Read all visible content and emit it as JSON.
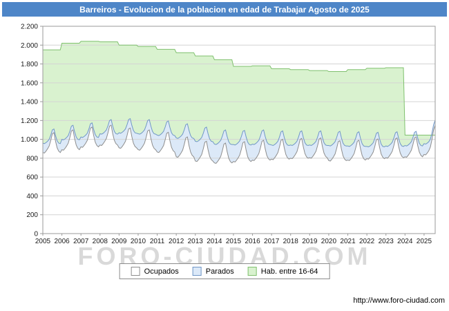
{
  "title": "Barreiros - Evolucion de la poblacion en edad de Trabajar Agosto de 2025",
  "watermark": "FORO-CIUDAD.COM",
  "footer_url": "http://www.foro-ciudad.com",
  "colors": {
    "title_bg": "#4e86c8",
    "title_fg": "#ffffff",
    "grid": "#d4d4d4",
    "plot_border": "#9a9a9a",
    "axis_text": "#1a1a1a",
    "watermark": "#d9d9d9",
    "hab_fill": "#d9f2cf",
    "hab_stroke": "#7fc06e",
    "parados_fill": "#dce9f8",
    "parados_stroke": "#6f96c6",
    "ocupados_fill": "#ffffff",
    "ocupados_stroke": "#8d8d8d"
  },
  "legend": [
    {
      "label": "Ocupados",
      "fill": "#ffffff",
      "stroke": "#8d8d8d"
    },
    {
      "label": "Parados",
      "fill": "#dce9f8",
      "stroke": "#6f96c6"
    },
    {
      "label": "Hab. entre 16-64",
      "fill": "#d9f2cf",
      "stroke": "#7fc06e"
    }
  ],
  "chart_data": {
    "type": "area",
    "title": "Barreiros - Evolucion de la poblacion en edad de Trabajar Agosto de 2025",
    "xlabel": "",
    "ylabel": "",
    "ylim": [
      0,
      2200
    ],
    "grid": "horizontal",
    "legend_position": "bottom",
    "stacking": "Parados is stacked on top of Ocupados; Hab. entre 16-64 is the background total area",
    "y_tick_labels": [
      "0",
      "200",
      "400",
      "600",
      "800",
      "1.000",
      "1.200",
      "1.400",
      "1.600",
      "1.800",
      "2.000",
      "2.200"
    ],
    "x_tick_labels": [
      "2005",
      "2006",
      "2007",
      "2008",
      "2009",
      "2010",
      "2011",
      "2012",
      "2013",
      "2014",
      "2015",
      "2016",
      "2017",
      "2018",
      "2019",
      "2020",
      "2021",
      "2022",
      "2023",
      "2024",
      "2025"
    ],
    "frequency": "monthly",
    "last_month": "Agosto 2025",
    "years": [
      {
        "year": 2005,
        "hab": 1950,
        "ocupados": [
          860,
          855,
          875,
          900,
          930,
          990,
          1060,
          1070,
          980,
          910,
          875,
          860
        ],
        "parados": [
          100,
          100,
          90,
          80,
          70,
          55,
          40,
          40,
          60,
          75,
          85,
          95
        ]
      },
      {
        "year": 2006,
        "hab": 2020,
        "ocupados": [
          890,
          885,
          905,
          930,
          960,
          1020,
          1090,
          1100,
          1010,
          940,
          905,
          890
        ],
        "parados": [
          110,
          110,
          100,
          90,
          80,
          65,
          50,
          50,
          70,
          85,
          95,
          105
        ]
      },
      {
        "year": 2007,
        "hab": 2040,
        "ocupados": [
          920,
          915,
          935,
          960,
          990,
          1050,
          1120,
          1130,
          1040,
          970,
          935,
          920
        ],
        "parados": [
          105,
          105,
          95,
          85,
          75,
          60,
          45,
          45,
          65,
          80,
          90,
          100
        ]
      },
      {
        "year": 2008,
        "hab": 2035,
        "ocupados": [
          940,
          935,
          955,
          980,
          1010,
          1070,
          1140,
          1150,
          1060,
          990,
          955,
          940
        ],
        "parados": [
          120,
          120,
          110,
          100,
          90,
          75,
          60,
          60,
          80,
          95,
          105,
          115
        ]
      },
      {
        "year": 2009,
        "hab": 2000,
        "ocupados": [
          910,
          905,
          925,
          950,
          980,
          1040,
          1110,
          1120,
          1030,
          960,
          925,
          910
        ],
        "parados": [
          160,
          160,
          150,
          140,
          130,
          115,
          100,
          100,
          120,
          135,
          145,
          155
        ]
      },
      {
        "year": 2010,
        "hab": 1985,
        "ocupados": [
          890,
          885,
          905,
          930,
          960,
          1020,
          1090,
          1100,
          1010,
          940,
          905,
          890
        ],
        "parados": [
          170,
          170,
          160,
          150,
          140,
          125,
          110,
          110,
          130,
          145,
          155,
          165
        ]
      },
      {
        "year": 2011,
        "hab": 1955,
        "ocupados": [
          865,
          860,
          880,
          905,
          935,
          995,
          1065,
          1075,
          985,
          915,
          880,
          865
        ],
        "parados": [
          180,
          180,
          170,
          160,
          150,
          135,
          120,
          120,
          140,
          155,
          165,
          175
        ]
      },
      {
        "year": 2012,
        "hab": 1920,
        "ocupados": [
          815,
          810,
          830,
          855,
          885,
          945,
          1015,
          1025,
          935,
          865,
          830,
          815
        ],
        "parados": [
          200,
          200,
          190,
          180,
          170,
          155,
          140,
          140,
          160,
          175,
          185,
          195
        ]
      },
      {
        "year": 2013,
        "hab": 1885,
        "ocupados": [
          770,
          765,
          785,
          810,
          840,
          900,
          970,
          980,
          890,
          820,
          785,
          770
        ],
        "parados": [
          210,
          210,
          200,
          190,
          180,
          165,
          150,
          150,
          170,
          185,
          195,
          205
        ]
      },
      {
        "year": 2014,
        "hab": 1845,
        "ocupados": [
          750,
          745,
          765,
          790,
          820,
          880,
          950,
          960,
          870,
          800,
          765,
          750
        ],
        "parados": [
          200,
          200,
          190,
          180,
          170,
          155,
          140,
          140,
          160,
          175,
          185,
          195
        ]
      },
      {
        "year": 2015,
        "hab": 1775,
        "ocupados": [
          765,
          760,
          780,
          805,
          835,
          895,
          965,
          975,
          885,
          815,
          780,
          765
        ],
        "parados": [
          180,
          180,
          170,
          160,
          150,
          135,
          120,
          120,
          140,
          155,
          165,
          175
        ]
      },
      {
        "year": 2016,
        "hab": 1780,
        "ocupados": [
          780,
          775,
          795,
          820,
          850,
          910,
          980,
          990,
          900,
          830,
          795,
          780
        ],
        "parados": [
          170,
          170,
          160,
          150,
          140,
          125,
          110,
          110,
          130,
          145,
          155,
          165
        ]
      },
      {
        "year": 2017,
        "hab": 1750,
        "ocupados": [
          790,
          785,
          805,
          830,
          860,
          920,
          990,
          1000,
          910,
          840,
          805,
          790
        ],
        "parados": [
          150,
          150,
          140,
          130,
          120,
          105,
          90,
          90,
          110,
          125,
          135,
          145
        ]
      },
      {
        "year": 2018,
        "hab": 1740,
        "ocupados": [
          800,
          795,
          815,
          840,
          870,
          930,
          1000,
          1010,
          920,
          850,
          815,
          800
        ],
        "parados": [
          140,
          140,
          130,
          120,
          110,
          95,
          80,
          80,
          100,
          115,
          125,
          135
        ]
      },
      {
        "year": 2019,
        "hab": 1730,
        "ocupados": [
          805,
          800,
          820,
          845,
          875,
          935,
          1005,
          1015,
          925,
          855,
          820,
          805
        ],
        "parados": [
          135,
          135,
          125,
          115,
          105,
          90,
          75,
          75,
          95,
          110,
          120,
          130
        ]
      },
      {
        "year": 2020,
        "hab": 1720,
        "ocupados": [
          775,
          770,
          790,
          815,
          845,
          905,
          975,
          985,
          895,
          825,
          790,
          775
        ],
        "parados": [
          160,
          160,
          150,
          140,
          130,
          115,
          100,
          100,
          120,
          135,
          145,
          155
        ]
      },
      {
        "year": 2021,
        "hab": 1740,
        "ocupados": [
          780,
          775,
          795,
          820,
          850,
          910,
          980,
          990,
          900,
          830,
          795,
          780
        ],
        "parados": [
          150,
          150,
          140,
          130,
          120,
          105,
          90,
          90,
          110,
          125,
          135,
          145
        ]
      },
      {
        "year": 2022,
        "hab": 1755,
        "ocupados": [
          795,
          790,
          810,
          835,
          865,
          925,
          995,
          1005,
          915,
          845,
          810,
          795
        ],
        "parados": [
          130,
          130,
          120,
          110,
          100,
          85,
          70,
          70,
          90,
          105,
          115,
          125
        ]
      },
      {
        "year": 2023,
        "hab": 1760,
        "ocupados": [
          805,
          800,
          820,
          845,
          875,
          935,
          1005,
          1015,
          925,
          855,
          820,
          805
        ],
        "parados": [
          125,
          125,
          115,
          105,
          95,
          80,
          65,
          65,
          85,
          100,
          110,
          120
        ]
      },
      {
        "year": 2024,
        "hab": 1045,
        "ocupados": [
          815,
          810,
          830,
          855,
          885,
          945,
          1015,
          1025,
          935,
          865,
          830,
          815
        ],
        "parados": [
          120,
          120,
          110,
          100,
          90,
          75,
          60,
          60,
          80,
          95,
          105,
          115
        ]
      },
      {
        "year": 2025,
        "hab": 1045,
        "ocupados": [
          840,
          835,
          855,
          880,
          920,
          1000,
          1100,
          1150
        ],
        "parados": [
          115,
          115,
          105,
          95,
          85,
          70,
          55,
          55
        ]
      }
    ]
  }
}
